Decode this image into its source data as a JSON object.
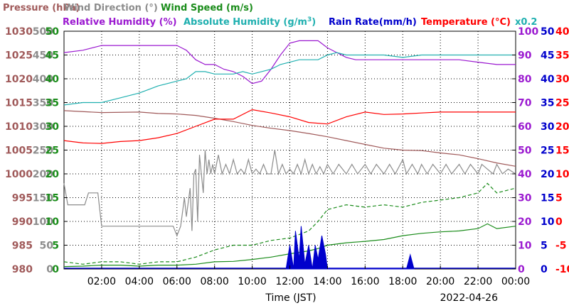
{
  "chart_data": {
    "type": "line",
    "date": "2022-04-26",
    "xlabel": "Time (JST)",
    "x_ticks": [
      "02:00",
      "04:00",
      "06:00",
      "08:00",
      "10:00",
      "12:00",
      "14:00",
      "16:00",
      "18:00",
      "20:00",
      "22:00",
      "00:00"
    ],
    "x_range": [
      0,
      24
    ],
    "grid": true,
    "legend": [
      {
        "text": "Pressure (hPa)",
        "color": "#a05a5a"
      },
      {
        "text": "Wind Direction (°)",
        "color": "#8c8c8c"
      },
      {
        "text": "Wind Speed (m/s)",
        "color": "#1a8c1a"
      },
      {
        "text": "Relative Humidity (%)",
        "color": "#9b1ad0"
      },
      {
        "text": "Absolute Humidity (g/m",
        "sup": "3",
        "close": ")",
        "color": "#20b0b0"
      },
      {
        "text": "Rain Rate(mm/h)",
        "color": "#0000cc"
      },
      {
        "text": "Temperature (°C)",
        "color": "#ff0000"
      },
      {
        "text": "x0.2",
        "color": "#20b0b0"
      }
    ],
    "axes": {
      "pressure": {
        "color": "#a05a5a",
        "range": [
          980,
          1030
        ],
        "ticks": [
          "980",
          "985",
          "990",
          "995",
          "1000",
          "1005",
          "1010",
          "1015",
          "1020",
          "1025",
          "1030"
        ]
      },
      "wind_direction": {
        "color": "#8c8c8c",
        "range": [
          0,
          500
        ],
        "ticks": [
          "0",
          "50",
          "100",
          "150",
          "200",
          "250",
          "300",
          "350",
          "400",
          "450",
          "500"
        ]
      },
      "wind_speed": {
        "color": "#1a8c1a",
        "range": [
          0,
          50
        ],
        "ticks": [
          "0",
          "5",
          "10",
          "15",
          "20",
          "25",
          "30",
          "35",
          "40",
          "45",
          "50"
        ]
      },
      "relative_humidity": {
        "color": "#9b1ad0",
        "range": [
          0,
          100
        ],
        "ticks": [
          "0",
          "10",
          "20",
          "30",
          "40",
          "50",
          "60",
          "70",
          "80",
          "90",
          "100"
        ]
      },
      "rain_rate": {
        "color": "#0000cc",
        "range": [
          0,
          50
        ],
        "ticks": [
          "0",
          "5",
          "10",
          "15",
          "20",
          "25",
          "30",
          "35",
          "40",
          "45",
          "50"
        ]
      },
      "temperature": {
        "color": "#ff0000",
        "range": [
          -10,
          40
        ],
        "ticks": [
          "-10",
          "-5",
          "0",
          "5",
          "10",
          "15",
          "20",
          "25",
          "30",
          "35",
          "40"
        ]
      }
    },
    "series": [
      {
        "name": "Pressure (hPa)",
        "axis": "pressure",
        "color": "#a05a5a",
        "x": [
          0,
          2,
          4,
          5,
          6,
          7,
          8,
          9,
          10,
          11,
          12,
          13,
          14,
          15,
          16,
          17,
          18,
          19,
          20,
          21,
          22,
          23,
          24
        ],
        "y": [
          1013.3,
          1012.9,
          1013.0,
          1012.7,
          1012.6,
          1012.3,
          1011.7,
          1011.0,
          1010.2,
          1009.6,
          1009.1,
          1008.5,
          1007.8,
          1007.0,
          1006.2,
          1005.4,
          1005.0,
          1004.9,
          1004.4,
          1004.0,
          1003.2,
          1002.3,
          1001.6
        ]
      },
      {
        "name": "Wind Direction (°)",
        "axis": "wind_direction",
        "color": "#8c8c8c",
        "x": [
          0,
          0.2,
          1.1,
          1.3,
          1.5,
          1.8,
          2.0,
          5.8,
          6.0,
          6.2,
          6.4,
          6.5,
          6.7,
          6.8,
          6.9,
          7.0,
          7.1,
          7.2,
          7.3,
          7.4,
          7.5,
          7.6,
          7.7,
          7.8,
          7.9,
          8.0,
          8.2,
          8.4,
          8.6,
          8.8,
          9.0,
          9.2,
          9.4,
          9.6,
          9.8,
          10.0,
          10.2,
          10.4,
          10.6,
          10.8,
          11.0,
          11.2,
          11.4,
          11.6,
          11.8,
          12.0,
          12.2,
          12.4,
          12.6,
          12.8,
          13.0,
          13.2,
          13.4,
          13.6,
          13.8,
          14.0,
          14.3,
          14.6,
          15.0,
          15.3,
          15.6,
          16.0,
          16.3,
          16.6,
          17.0,
          17.3,
          17.6,
          18.0,
          18.2,
          18.5,
          18.8,
          19.0,
          19.3,
          19.6,
          20.0,
          20.3,
          20.6,
          21.0,
          21.3,
          21.6,
          22.0,
          22.2,
          22.5,
          22.8,
          23.0,
          23.3,
          23.6,
          24.0
        ],
        "y": [
          180,
          135,
          135,
          160,
          160,
          160,
          90,
          90,
          70,
          90,
          150,
          110,
          170,
          80,
          200,
          210,
          100,
          240,
          200,
          160,
          250,
          200,
          230,
          200,
          220,
          200,
          240,
          200,
          220,
          200,
          230,
          200,
          210,
          200,
          230,
          200,
          210,
          200,
          220,
          200,
          200,
          250,
          200,
          220,
          200,
          210,
          200,
          220,
          200,
          230,
          200,
          220,
          200,
          215,
          200,
          220,
          200,
          220,
          200,
          220,
          200,
          220,
          200,
          220,
          200,
          220,
          200,
          230,
          200,
          220,
          200,
          220,
          200,
          220,
          200,
          220,
          200,
          220,
          200,
          220,
          200,
          220,
          210,
          200,
          220,
          200,
          210,
          200
        ]
      },
      {
        "name": "Wind Speed (m/s)",
        "axis": "wind_speed",
        "color": "#1a8c1a",
        "x": [
          0,
          1,
          2,
          3,
          4,
          5,
          6,
          7,
          8,
          9,
          10,
          11,
          12,
          13,
          13.5,
          14,
          15,
          16,
          17,
          18,
          19,
          20,
          21,
          22,
          22.5,
          23,
          24
        ],
        "y": [
          0.5,
          0.6,
          0.8,
          0.8,
          0.6,
          0.8,
          0.8,
          1.0,
          1.5,
          1.6,
          2.0,
          2.5,
          3.2,
          3.8,
          4.3,
          5.0,
          5.5,
          5.8,
          6.2,
          7.0,
          7.5,
          7.8,
          8.0,
          8.5,
          9.5,
          8.5,
          9.0
        ]
      },
      {
        "name": "Wind Speed (dashed)",
        "axis": "wind_speed",
        "color": "#1a8c1a",
        "dashed": true,
        "x": [
          0,
          1,
          2,
          3,
          4,
          5,
          6,
          7,
          8,
          9,
          10,
          11,
          12,
          13,
          13.5,
          14,
          15,
          16,
          17,
          18,
          19,
          20,
          21,
          22,
          22.5,
          23,
          24
        ],
        "y": [
          1.5,
          1.0,
          1.5,
          1.5,
          1.0,
          1.5,
          1.5,
          2.5,
          4.0,
          5.0,
          5.0,
          6.0,
          6.5,
          8.0,
          10.0,
          12.5,
          13.5,
          13.0,
          13.5,
          13.0,
          14.0,
          14.5,
          15.0,
          16.0,
          18.0,
          16.0,
          17.0
        ]
      },
      {
        "name": "Relative Humidity (%)",
        "axis": "relative_humidity",
        "color": "#9b1ad0",
        "x": [
          0,
          1,
          2,
          3,
          4,
          5,
          6,
          6.5,
          7,
          7.5,
          8,
          8.5,
          9,
          9.5,
          10,
          10.5,
          11,
          11.5,
          12,
          12.5,
          13,
          13.5,
          14,
          14.5,
          15,
          15.5,
          16,
          17,
          18,
          19,
          20,
          21,
          22,
          23,
          24
        ],
        "y": [
          91,
          92,
          94,
          94,
          94,
          94,
          94,
          92,
          88,
          86,
          86,
          84,
          83,
          81,
          78,
          79,
          84,
          90,
          95,
          96,
          96,
          96,
          93,
          91,
          89,
          88,
          88,
          88,
          88,
          88,
          88,
          88,
          87,
          86,
          86
        ]
      },
      {
        "name": "Absolute Humidity (g/m3)",
        "axis": "relative_humidity",
        "color": "#20b0b0",
        "x": [
          0,
          1,
          2,
          3,
          4,
          5,
          6,
          6.5,
          7,
          7.5,
          8,
          8.5,
          9,
          9.5,
          10,
          10.5,
          11,
          11.5,
          12,
          12.5,
          13,
          13.5,
          14,
          14.5,
          15,
          16,
          17,
          18,
          19,
          20,
          21,
          22,
          23,
          24
        ],
        "y": [
          69,
          70,
          70,
          72,
          74,
          77,
          79,
          80,
          83,
          83,
          82,
          82,
          82,
          83,
          82,
          83,
          84,
          86,
          87,
          88,
          88,
          88,
          90,
          91,
          90,
          90,
          90,
          89,
          90,
          90,
          90,
          90,
          90,
          90
        ]
      },
      {
        "name": "Temperature (°C)",
        "axis": "temperature",
        "color": "#ff0000",
        "x": [
          0,
          1,
          2,
          3,
          4,
          5,
          6,
          7,
          8,
          9,
          10,
          11,
          12,
          13,
          14,
          15,
          16,
          17,
          18,
          19,
          20,
          21,
          22,
          23,
          24
        ],
        "y": [
          17.0,
          16.5,
          16.4,
          16.8,
          17.0,
          17.6,
          18.5,
          20.0,
          21.5,
          21.5,
          23.5,
          22.8,
          22.0,
          20.8,
          20.5,
          22.0,
          23.0,
          22.5,
          22.6,
          22.8,
          23.0,
          23.0,
          23.0,
          23.0,
          23.0
        ]
      },
      {
        "name": "Rain Rate(mm/h)",
        "axis": "rain_rate",
        "color": "#0000cc",
        "fill": true,
        "x": [
          11.8,
          12.0,
          12.2,
          12.3,
          12.5,
          12.6,
          12.8,
          13.0,
          13.2,
          13.35,
          13.5,
          13.7,
          13.9,
          14.0,
          14.5,
          18.2,
          18.4,
          18.6
        ],
        "y": [
          0,
          5,
          0,
          8,
          2,
          9,
          1,
          5,
          0,
          5,
          2,
          7,
          3,
          0,
          0,
          0,
          3,
          0
        ]
      }
    ]
  }
}
